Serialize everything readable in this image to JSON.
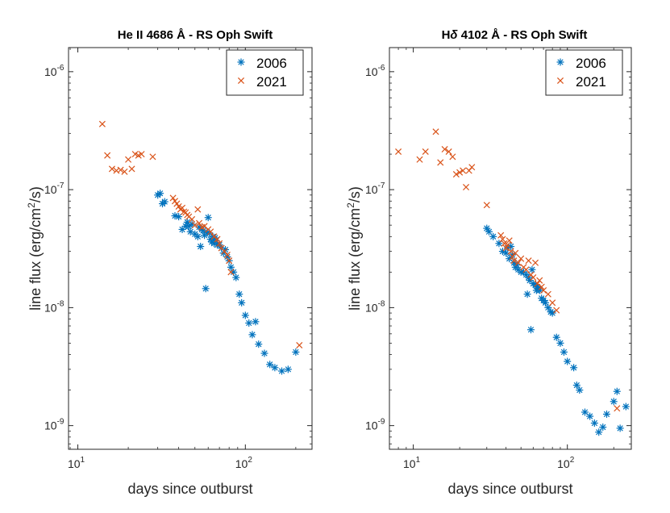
{
  "chart_data": [
    {
      "type": "scatter",
      "title_prefix": "He II 4686 Å",
      "title_suffix": "- RS Oph Swift",
      "xlabel": "days since outburst",
      "ylabel": "line flux (erg/cm",
      "ylabel_sup": "2",
      "ylabel_tail": "/s)",
      "xscale": "log",
      "yscale": "log",
      "xlim": [
        8.8,
        250
      ],
      "ylim": [
        6.3e-10,
        1.6e-06
      ],
      "xticks": [
        {
          "value": 10,
          "base": "10",
          "exp": "1"
        },
        {
          "value": 100,
          "base": "10",
          "exp": "2"
        }
      ],
      "yticks": [
        {
          "value": 1e-09,
          "base": "10",
          "exp": "-9"
        },
        {
          "value": 1e-08,
          "base": "10",
          "exp": "-8"
        },
        {
          "value": 1e-07,
          "base": "10",
          "exp": "-7"
        },
        {
          "value": 1e-06,
          "base": "10",
          "exp": "-6"
        }
      ],
      "legend_position": "top-right",
      "series": [
        {
          "name": "2006",
          "marker": "asterisk",
          "color": "#0072BD",
          "x": [
            30,
            31,
            32,
            33,
            38,
            40,
            42,
            44,
            45,
            46,
            47,
            48,
            50,
            52,
            53,
            54,
            55,
            56,
            57,
            58,
            59,
            60,
            61,
            62,
            63,
            64,
            65,
            66,
            67,
            68,
            70,
            72,
            74,
            76,
            78,
            80,
            82,
            85,
            88,
            92,
            95,
            100,
            105,
            110,
            115,
            120,
            130,
            140,
            150,
            165,
            180,
            200
          ],
          "y": [
            9e-08,
            9.3e-08,
            7.6e-08,
            7.9e-08,
            6e-08,
            5.9e-08,
            4.6e-08,
            4.9e-08,
            5.3e-08,
            4.9e-08,
            4.4e-08,
            5.1e-08,
            4.2e-08,
            4e-08,
            4.8e-08,
            3.3e-08,
            4.6e-08,
            4.5e-08,
            4.1e-08,
            1.45e-08,
            4.3e-08,
            5.8e-08,
            4.3e-08,
            3.8e-08,
            3.6e-08,
            4e-08,
            3.5e-08,
            3.9e-08,
            3.7e-08,
            3.4e-08,
            3.4e-08,
            3.2e-08,
            2.9e-08,
            3.1e-08,
            2.7e-08,
            2.5e-08,
            2.2e-08,
            2e-08,
            1.8e-08,
            1.3e-08,
            1.1e-08,
            8.6e-09,
            7.4e-09,
            5.9e-09,
            7.6e-09,
            4.9e-09,
            4.1e-09,
            3.3e-09,
            3.1e-09,
            2.9e-09,
            3e-09,
            4.2e-09
          ]
        },
        {
          "name": "2021",
          "marker": "cross",
          "color": "#D95319",
          "x": [
            14,
            15,
            16,
            17,
            18,
            19,
            20,
            21,
            22,
            23,
            24,
            28,
            37,
            38,
            39,
            40,
            41,
            42,
            43,
            44,
            45,
            46,
            48,
            50,
            52,
            53,
            55,
            57,
            60,
            62,
            65,
            68,
            70,
            72,
            75,
            78,
            80,
            82,
            210
          ],
          "y": [
            3.6e-07,
            1.95e-07,
            1.5e-07,
            1.45e-07,
            1.47e-07,
            1.42e-07,
            1.8e-07,
            1.5e-07,
            2e-07,
            1.95e-07,
            2e-07,
            1.9e-07,
            8.5e-08,
            8e-08,
            7.6e-08,
            7.2e-08,
            6.8e-08,
            7e-08,
            6.5e-08,
            6.4e-08,
            6.1e-08,
            5.9e-08,
            5.6e-08,
            5e-08,
            6.8e-08,
            5.2e-08,
            4.8e-08,
            4.9e-08,
            4.6e-08,
            4.4e-08,
            4e-08,
            3.8e-08,
            3.5e-08,
            3.2e-08,
            3e-08,
            2.8e-08,
            2.5e-08,
            2e-08,
            4.8e-09
          ]
        }
      ]
    },
    {
      "type": "scatter",
      "title_prefix": "H",
      "title_greek": "δ",
      "title_suffix": " 4102 Å - RS Oph Swift",
      "xlabel": "days since outburst",
      "ylabel": "line flux (erg/cm",
      "ylabel_sup": "2",
      "ylabel_tail": "/s)",
      "xscale": "log",
      "yscale": "log",
      "xlim": [
        7,
        260
      ],
      "ylim": [
        6.3e-10,
        1.6e-06
      ],
      "xticks": [
        {
          "value": 10,
          "base": "10",
          "exp": "1"
        },
        {
          "value": 100,
          "base": "10",
          "exp": "2"
        }
      ],
      "yticks": [
        {
          "value": 1e-09,
          "base": "10",
          "exp": "-9"
        },
        {
          "value": 1e-08,
          "base": "10",
          "exp": "-8"
        },
        {
          "value": 1e-07,
          "base": "10",
          "exp": "-7"
        },
        {
          "value": 1e-06,
          "base": "10",
          "exp": "-6"
        }
      ],
      "legend_position": "top-right",
      "series": [
        {
          "name": "2006",
          "marker": "asterisk",
          "color": "#0072BD",
          "x": [
            30,
            31,
            33,
            36,
            38,
            40,
            41,
            42,
            43,
            44,
            45,
            46,
            47,
            48,
            50,
            52,
            54,
            55,
            56,
            57,
            58,
            59,
            60,
            62,
            63,
            64,
            65,
            66,
            68,
            70,
            72,
            75,
            78,
            80,
            85,
            90,
            95,
            100,
            110,
            115,
            120,
            130,
            140,
            150,
            160,
            170,
            180,
            200,
            210,
            220,
            240
          ],
          "y": [
            4.7e-08,
            4.4e-08,
            4e-08,
            3.5e-08,
            3e-08,
            2.9e-08,
            3.2e-08,
            2.6e-08,
            3.3e-08,
            2.8e-08,
            2.4e-08,
            2.2e-08,
            2.3e-08,
            2.1e-08,
            2e-08,
            2e-08,
            1.9e-08,
            1.3e-08,
            1.8e-08,
            1.7e-08,
            6.5e-09,
            2.1e-08,
            1.6e-08,
            1.55e-08,
            1.4e-08,
            1.5e-08,
            1.45e-08,
            1.4e-08,
            1.2e-08,
            1.15e-08,
            1.1e-08,
            1e-08,
            9.2e-09,
            9e-09,
            5.6e-09,
            5e-09,
            4.2e-09,
            3.5e-09,
            3.1e-09,
            2.2e-09,
            2e-09,
            1.3e-09,
            1.2e-09,
            1.05e-09,
            8.8e-10,
            9.7e-10,
            1.25e-09,
            1.6e-09,
            1.95e-09,
            9.5e-10,
            1.45e-09
          ]
        },
        {
          "name": "2021",
          "marker": "cross",
          "color": "#D95319",
          "x": [
            8,
            11,
            12,
            14,
            15,
            16,
            17,
            18,
            19,
            20,
            21,
            22,
            23,
            24,
            30,
            37,
            38,
            39,
            40,
            41,
            42,
            43,
            44,
            45,
            46,
            48,
            50,
            52,
            54,
            56,
            58,
            60,
            62,
            64,
            66,
            68,
            70,
            75,
            80,
            85,
            210
          ],
          "y": [
            2.1e-07,
            1.8e-07,
            2.1e-07,
            3.1e-07,
            1.7e-07,
            2.2e-07,
            2.1e-07,
            1.9e-07,
            1.35e-07,
            1.4e-07,
            1.45e-07,
            1.05e-07,
            1.45e-07,
            1.55e-07,
            7.4e-08,
            4.1e-08,
            3.8e-08,
            3.5e-08,
            3.2e-08,
            3.4e-08,
            3.7e-08,
            3e-08,
            2.7e-08,
            2.5e-08,
            2.9e-08,
            2.4e-08,
            2.6e-08,
            2.2e-08,
            2.1e-08,
            2.5e-08,
            1.9e-08,
            1.8e-08,
            2.4e-08,
            1.6e-08,
            1.7e-08,
            1.5e-08,
            1.4e-08,
            1.3e-08,
            1.1e-08,
            9.5e-09,
            1.4e-09
          ]
        }
      ]
    }
  ]
}
